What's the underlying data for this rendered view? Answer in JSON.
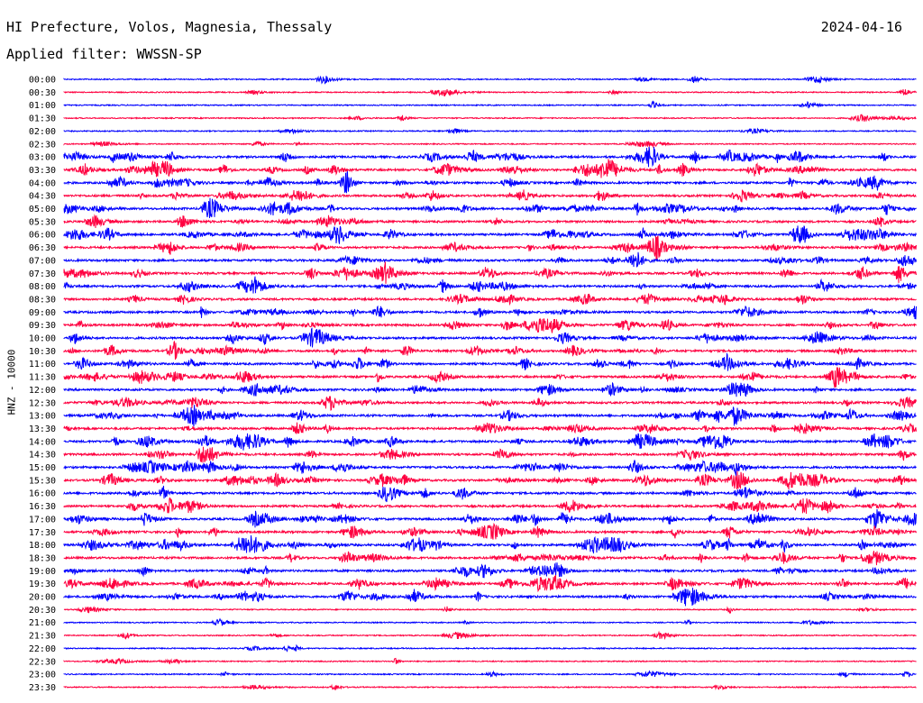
{
  "header": {
    "station": "HI Prefecture, Volos, Magnesia, Thessaly",
    "date": "2024-04-16",
    "filter": "Applied filter: WWSSN-SP"
  },
  "chart_data": {
    "type": "line",
    "title": "HI Prefecture, Volos, Magnesia, Thessaly",
    "ylabel": "HNZ - 10000",
    "xlabel": "",
    "row_labels": [
      "00:00",
      "00:30",
      "01:00",
      "01:30",
      "02:00",
      "02:30",
      "03:00",
      "03:30",
      "04:00",
      "04:30",
      "05:00",
      "05:30",
      "06:00",
      "06:30",
      "07:00",
      "07:30",
      "08:00",
      "08:30",
      "09:00",
      "09:30",
      "10:00",
      "10:30",
      "11:00",
      "11:30",
      "12:00",
      "12:30",
      "13:00",
      "13:30",
      "14:00",
      "14:30",
      "15:00",
      "15:30",
      "16:00",
      "16:30",
      "17:00",
      "17:30",
      "18:00",
      "18:30",
      "19:00",
      "19:30",
      "20:00",
      "20:30",
      "21:00",
      "21:30",
      "22:00",
      "22:30",
      "23:00",
      "23:30"
    ],
    "row_minutes": 30,
    "series_colors": [
      "#0000ff",
      "#ff0040"
    ],
    "grid": false,
    "legend": "none"
  }
}
